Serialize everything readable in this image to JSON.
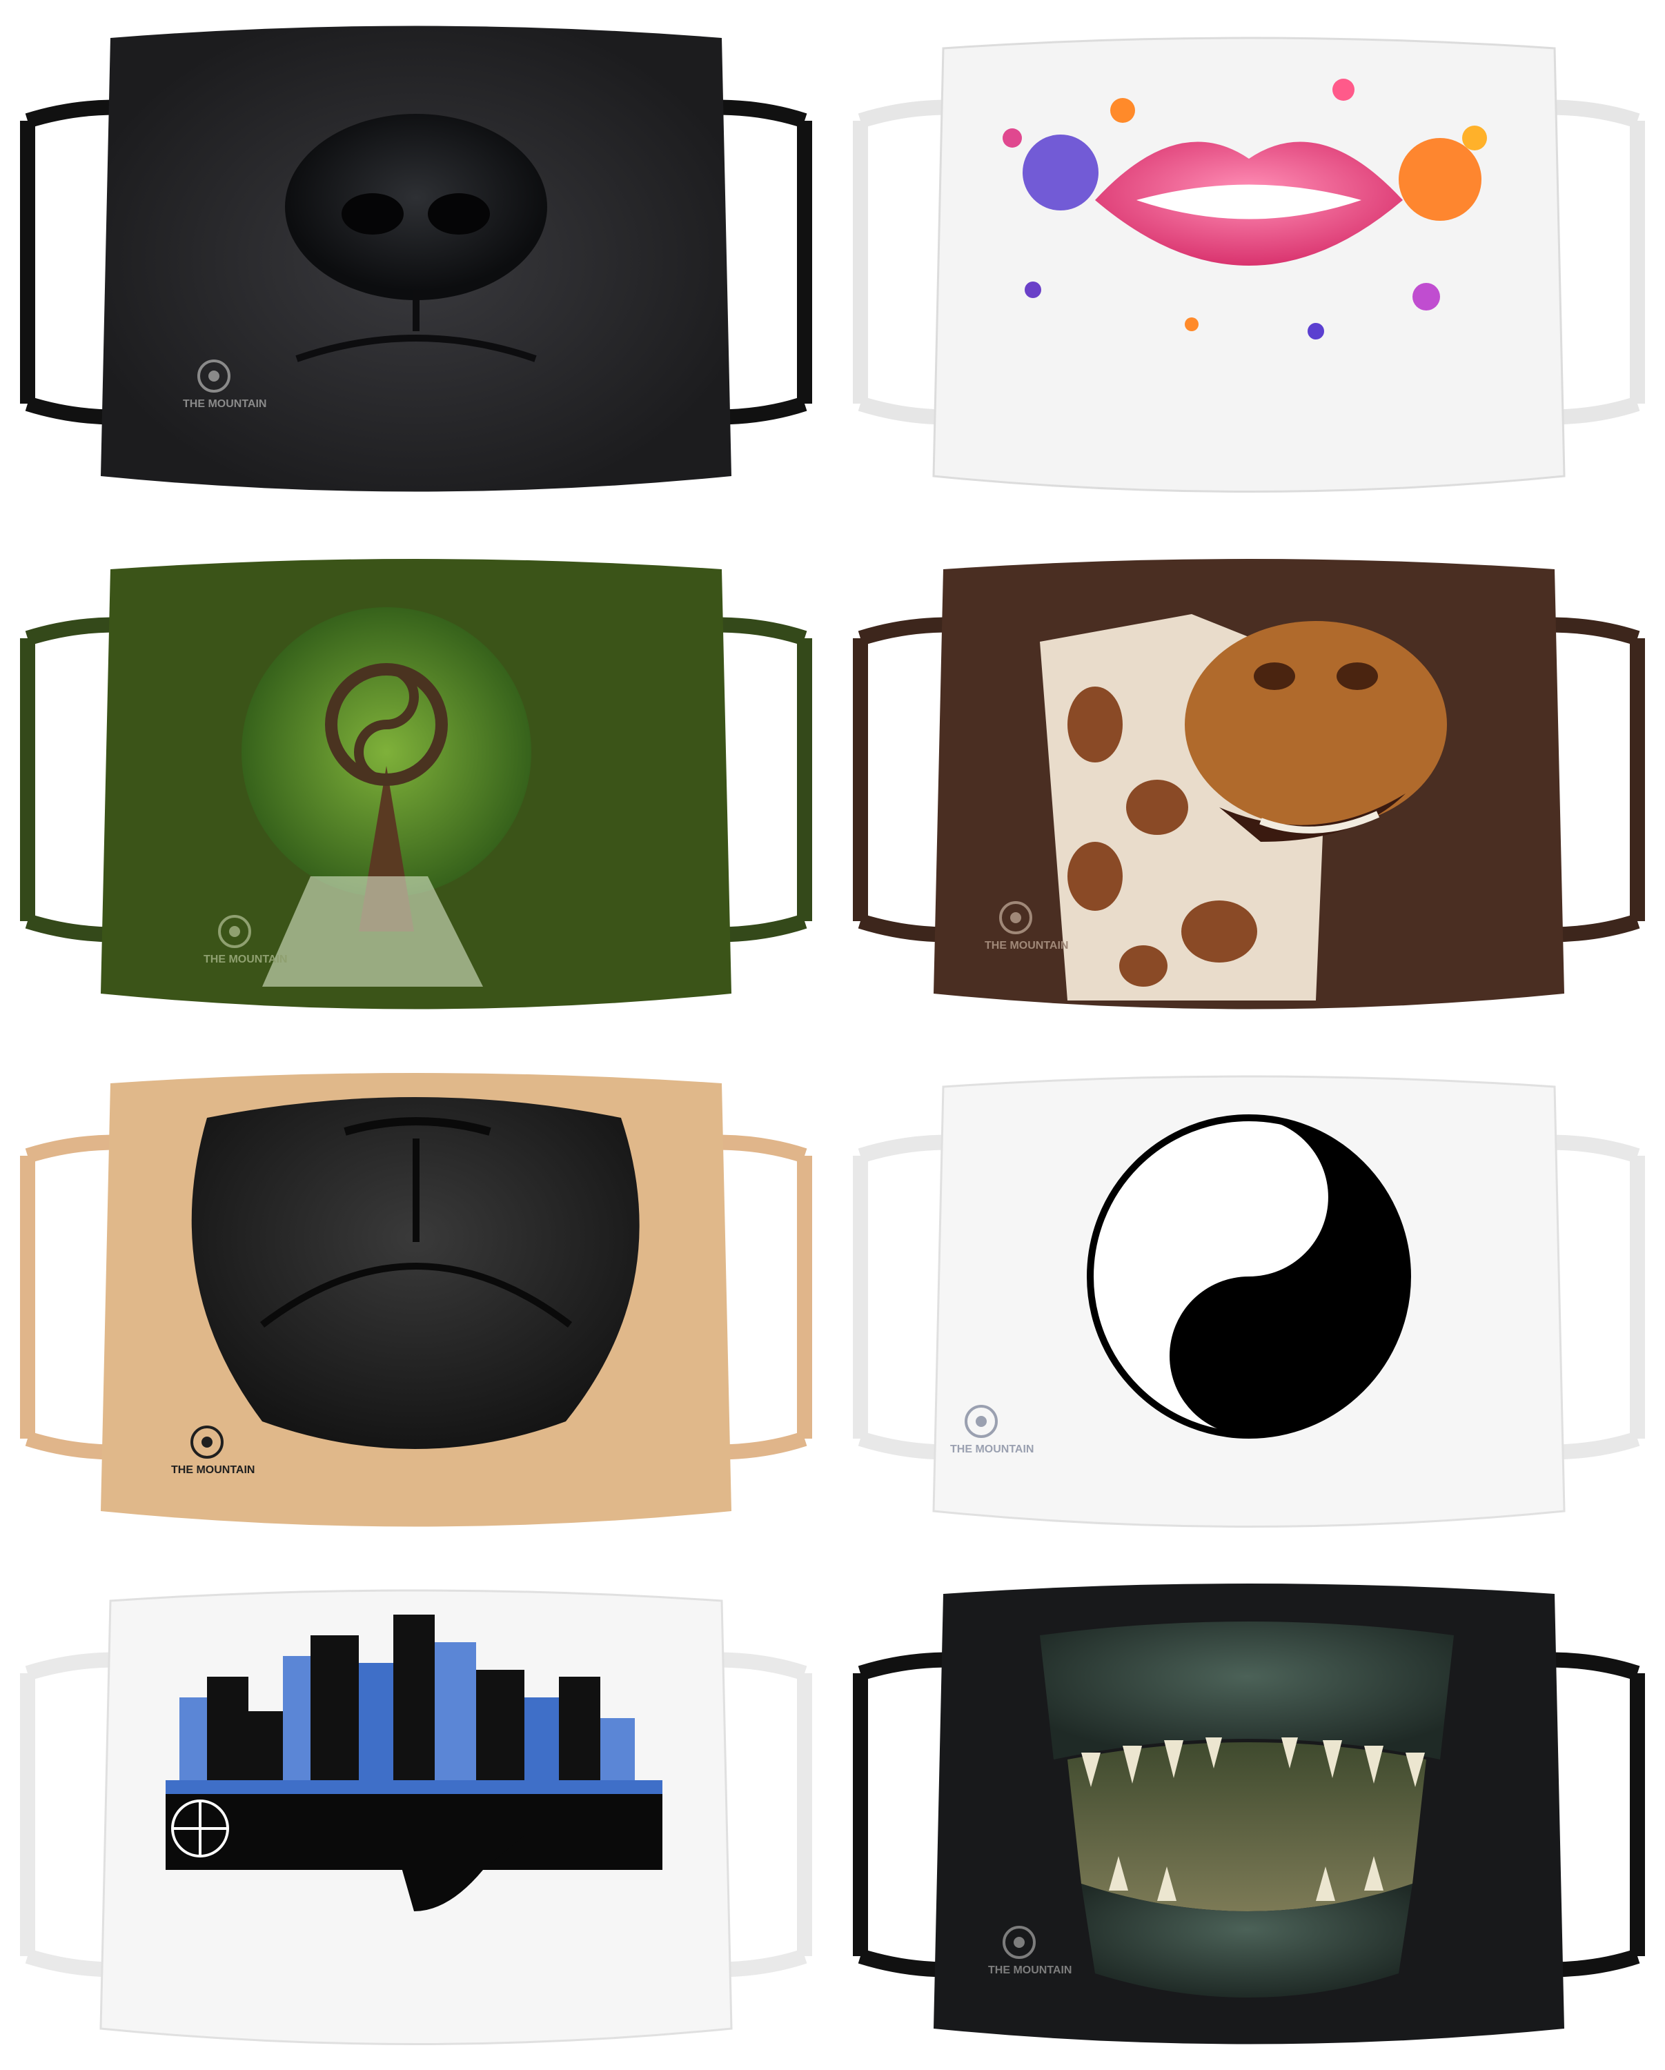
{
  "masks": [
    {
      "design": "dog-nose-black",
      "fabric": "#1c1c1e",
      "strap": "#111111",
      "logo": {
        "text": "THE MOUNTAIN",
        "color": "#8a8a8a"
      }
    },
    {
      "design": "pink-lips-splash",
      "fabric": "#f4f4f4",
      "strap": "#e6e6e6",
      "logo": {
        "text": "",
        "color": "#bbbbbb"
      }
    },
    {
      "design": "yin-yang-tree",
      "fabric": "#3b5418",
      "strap": "#34491a",
      "logo": {
        "text": "THE MOUNTAIN",
        "color": "#8fa070"
      }
    },
    {
      "design": "giraffe-face",
      "fabric": "#4a2e22",
      "strap": "#3d261c",
      "logo": {
        "text": "THE MOUNTAIN",
        "color": "#a08878"
      }
    },
    {
      "design": "pug-snout",
      "fabric": "#e0b88a",
      "strap": "#e0b58a",
      "logo": {
        "text": "THE MOUNTAIN",
        "color": "#1f1f1f"
      }
    },
    {
      "design": "yin-yang",
      "fabric": "#f6f6f6",
      "strap": "#e8e8e8",
      "logo": {
        "text": "THE MOUNTAIN",
        "color": "#9aa0b0"
      }
    },
    {
      "design": "city-skyline-handshake",
      "fabric": "#f6f6f6",
      "strap": "#e9e9e9",
      "logo": {
        "text": "",
        "color": "#cccccc"
      }
    },
    {
      "design": "alligator-teeth",
      "fabric": "#18191b",
      "strap": "#111111",
      "logo": {
        "text": "THE MOUNTAIN",
        "color": "#7d7d7d"
      }
    }
  ]
}
